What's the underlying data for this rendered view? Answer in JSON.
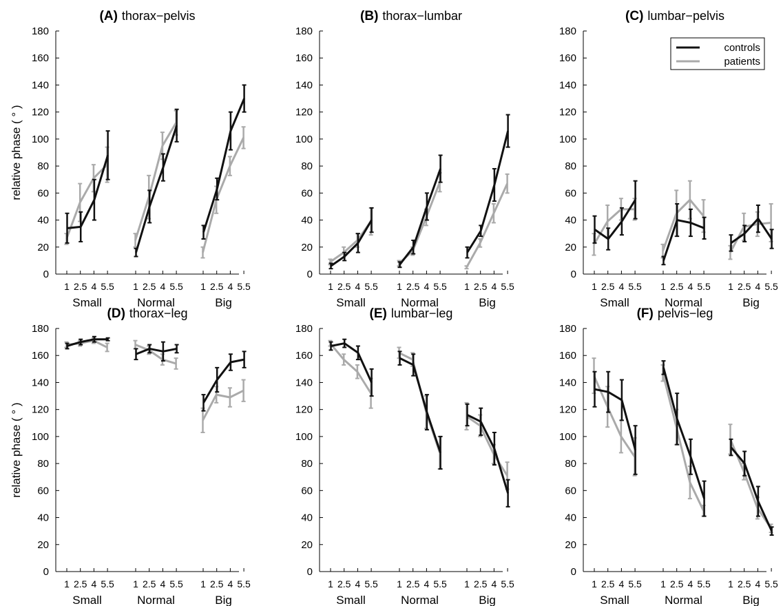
{
  "figure": {
    "ylabel": "relative phase ( ° )",
    "groups": [
      "Small",
      "Normal",
      "Big"
    ],
    "speeds": [
      "1",
      "2.5",
      "4",
      "5.5"
    ]
  },
  "legend": {
    "controls": "controls",
    "patients": "patients"
  },
  "colors": {
    "controls": "#111111",
    "patients": "#aaaaaa"
  },
  "chart_data": [
    {
      "type": "line",
      "panel": "(A)",
      "name": "thorax−pelvis",
      "ylim": [
        0,
        180
      ],
      "yticks": [
        0,
        20,
        40,
        60,
        80,
        100,
        120,
        140,
        160,
        180
      ],
      "categories": [
        "Small",
        "Normal",
        "Big"
      ],
      "x": [
        "1",
        "2.5",
        "4",
        "5.5"
      ],
      "series": [
        {
          "name": "controls",
          "values": [
            [
              34,
              35,
              55,
              88
            ],
            [
              16,
              50,
              79,
              110
            ],
            [
              31,
              63,
              106,
              130
            ]
          ],
          "err": [
            [
              11,
              11,
              15,
              18
            ],
            [
              3,
              12,
              10,
              12
            ],
            [
              5,
              8,
              14,
              10
            ]
          ]
        },
        {
          "name": "patients",
          "values": [
            [
              26,
              53,
              71,
              81
            ],
            [
              25,
              57,
              95,
              112
            ],
            [
              16,
              55,
              80,
              101
            ]
          ],
          "err": [
            [
              4,
              14,
              10,
              13
            ],
            [
              5,
              16,
              10,
              9
            ],
            [
              4,
              10,
              7,
              8
            ]
          ]
        }
      ]
    },
    {
      "type": "line",
      "panel": "(B)",
      "name": "thorax−lumbar",
      "ylim": [
        0,
        180
      ],
      "yticks": [
        0,
        20,
        40,
        60,
        80,
        100,
        120,
        140,
        160,
        180
      ],
      "categories": [
        "Small",
        "Normal",
        "Big"
      ],
      "x": [
        "1",
        "2.5",
        "4",
        "5.5"
      ],
      "series": [
        {
          "name": "controls",
          "values": [
            [
              6,
              13,
              23,
              40
            ],
            [
              7,
              20,
              50,
              78
            ],
            [
              16,
              32,
              66,
              106
            ]
          ],
          "err": [
            [
              2,
              3,
              7,
              9
            ],
            [
              2,
              5,
              10,
              10
            ],
            [
              4,
              4,
              12,
              12
            ]
          ]
        },
        {
          "name": "patients",
          "values": [
            [
              9,
              16,
              25,
              39
            ],
            [
              8,
              17,
              42,
              68
            ],
            [
              5,
              23,
              45,
              67
            ]
          ],
          "err": [
            [
              2,
              4,
              5,
              10
            ],
            [
              2,
              3,
              6,
              7
            ],
            [
              1,
              3,
              7,
              7
            ]
          ]
        }
      ]
    },
    {
      "type": "line",
      "panel": "(C)",
      "name": "lumbar−pelvis",
      "ylim": [
        0,
        180
      ],
      "yticks": [
        0,
        20,
        40,
        60,
        80,
        100,
        120,
        140,
        160,
        180
      ],
      "categories": [
        "Small",
        "Normal",
        "Big"
      ],
      "x": [
        "1",
        "2.5",
        "4",
        "5.5"
      ],
      "series": [
        {
          "name": "controls",
          "values": [
            [
              33,
              26,
              39,
              55
            ],
            [
              10,
              40,
              38,
              34
            ],
            [
              23,
              30,
              41,
              26
            ]
          ],
          "err": [
            [
              10,
              8,
              10,
              14
            ],
            [
              3,
              12,
              10,
              8
            ],
            [
              6,
              6,
              10,
              7
            ]
          ]
        },
        {
          "name": "patients",
          "values": [
            [
              22,
              39,
              48,
              48
            ],
            [
              17,
              45,
              55,
              43
            ],
            [
              16,
              35,
              37,
              38
            ]
          ],
          "err": [
            [
              8,
              12,
              8,
              8
            ],
            [
              5,
              17,
              14,
              12
            ],
            [
              5,
              10,
              9,
              14
            ]
          ]
        }
      ]
    },
    {
      "type": "line",
      "panel": "(D)",
      "name": "thorax−leg",
      "ylim": [
        0,
        180
      ],
      "yticks": [
        0,
        20,
        40,
        60,
        80,
        100,
        120,
        140,
        160,
        180
      ],
      "categories": [
        "Small",
        "Normal",
        "Big"
      ],
      "x": [
        "1",
        "2.5",
        "4",
        "5.5"
      ],
      "series": [
        {
          "name": "controls",
          "values": [
            [
              167,
              170,
              172,
              172
            ],
            [
              161,
              165,
              163,
              165
            ],
            [
              125,
              142,
              155,
              157
            ]
          ],
          "err": [
            [
              2,
              2,
              2,
              1
            ],
            [
              4,
              3,
              7,
              3
            ],
            [
              6,
              9,
              6,
              6
            ]
          ]
        },
        {
          "name": "patients",
          "values": [
            [
              168,
              169,
              171,
              166
            ],
            [
              168,
              164,
              157,
              154
            ],
            [
              112,
              131,
              129,
              134
            ]
          ],
          "err": [
            [
              2,
              2,
              2,
              3
            ],
            [
              3,
              3,
              4,
              4
            ],
            [
              9,
              6,
              7,
              8
            ]
          ]
        }
      ]
    },
    {
      "type": "line",
      "panel": "(E)",
      "name": "lumbar−leg",
      "ylim": [
        0,
        180
      ],
      "yticks": [
        0,
        20,
        40,
        60,
        80,
        100,
        120,
        140,
        160,
        180
      ],
      "categories": [
        "Small",
        "Normal",
        "Big"
      ],
      "x": [
        "1",
        "2.5",
        "4",
        "5.5"
      ],
      "series": [
        {
          "name": "controls",
          "values": [
            [
              167,
              169,
              162,
              140
            ],
            [
              158,
              153,
              118,
              88
            ],
            [
              116,
              111,
              91,
              58
            ]
          ],
          "err": [
            [
              3,
              3,
              5,
              10
            ],
            [
              5,
              8,
              13,
              12
            ],
            [
              8,
              10,
              12,
              10
            ]
          ]
        },
        {
          "name": "patients",
          "values": [
            [
              169,
              157,
              148,
              132
            ],
            [
              162,
              157,
              118,
              88
            ],
            [
              115,
              108,
              87,
              71
            ]
          ],
          "err": [
            [
              2,
              4,
              5,
              11
            ],
            [
              4,
              5,
              12,
              12
            ],
            [
              10,
              8,
              7,
              10
            ]
          ]
        }
      ]
    },
    {
      "type": "line",
      "panel": "(F)",
      "name": "pelvis−leg",
      "ylim": [
        0,
        180
      ],
      "yticks": [
        0,
        20,
        40,
        60,
        80,
        100,
        120,
        140,
        160,
        180
      ],
      "categories": [
        "Small",
        "Normal",
        "Big"
      ],
      "x": [
        "1",
        "2.5",
        "4",
        "5.5"
      ],
      "series": [
        {
          "name": "controls",
          "values": [
            [
              135,
              133,
              127,
              90
            ],
            [
              151,
              113,
              85,
              54
            ],
            [
              92,
              80,
              52,
              30
            ]
          ],
          "err": [
            [
              13,
              15,
              15,
              18
            ],
            [
              5,
              19,
              13,
              13
            ],
            [
              6,
              9,
              11,
              3
            ]
          ]
        },
        {
          "name": "patients",
          "values": [
            [
              145,
              122,
              100,
              85
            ],
            [
              147,
              107,
              66,
              45
            ],
            [
              98,
              74,
              47,
              32
            ]
          ],
          "err": [
            [
              13,
              15,
              12,
              14
            ],
            [
              6,
              13,
              12,
              4
            ],
            [
              11,
              6,
              8,
              3
            ]
          ]
        }
      ]
    }
  ]
}
